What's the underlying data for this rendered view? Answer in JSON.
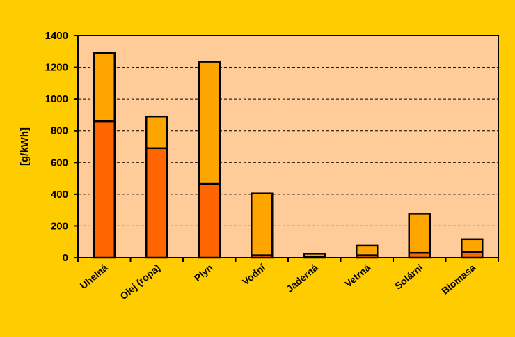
{
  "chart_data": {
    "type": "bar",
    "stacked": true,
    "categories": [
      "Uhelná",
      "Olej (ropa)",
      "Plyn",
      "Vodní",
      "Jaderná",
      "Vetrná",
      "Solárni",
      "Biomasa"
    ],
    "series": [
      {
        "values": [
          860,
          690,
          465,
          15,
          5,
          15,
          30,
          35
        ],
        "color": "#FF6600"
      },
      {
        "values": [
          430,
          200,
          770,
          390,
          20,
          60,
          245,
          80
        ],
        "color": "#FFA500"
      }
    ],
    "title": "",
    "xlabel": "",
    "ylabel": "[g/kWh]",
    "ylim": [
      0,
      1400
    ],
    "yticks": [
      0,
      200,
      400,
      600,
      800,
      1000,
      1200,
      1400
    ],
    "grid": true,
    "grid_style": "dashed",
    "plot_background": "#FFCC99",
    "page_background": "#FFCC00"
  }
}
